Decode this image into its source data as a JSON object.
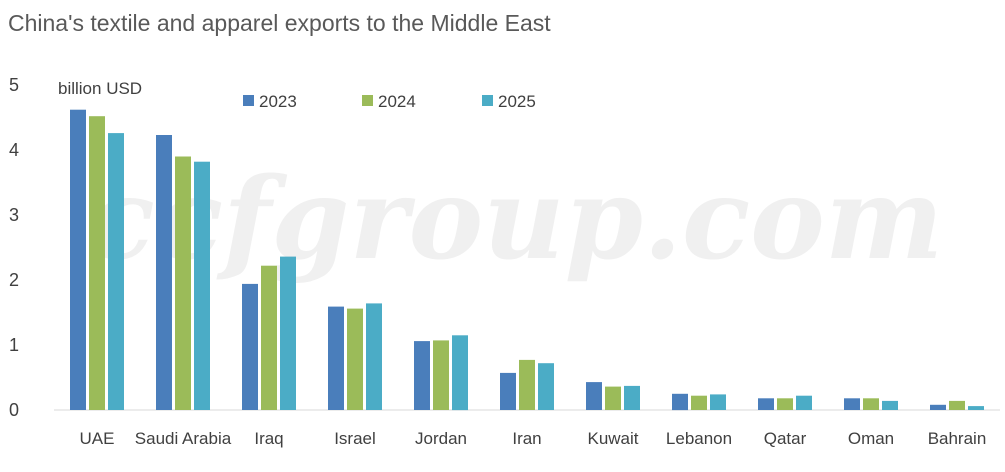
{
  "chart_data": {
    "type": "bar",
    "title": "China's textile and apparel exports to the Middle East",
    "unit_label": "billion USD",
    "watermark": "ccfgroup.com",
    "categories": [
      "UAE",
      "Saudi Arabia",
      "Iraq",
      "Israel",
      "Jordan",
      "Iran",
      "Kuwait",
      "Lebanon",
      "Qatar",
      "Oman",
      "Bahrain"
    ],
    "series": [
      {
        "name": "2023",
        "color": "#4a7ebb",
        "values": [
          4.62,
          4.23,
          1.94,
          1.59,
          1.06,
          0.57,
          0.43,
          0.25,
          0.18,
          0.18,
          0.08
        ]
      },
      {
        "name": "2024",
        "color": "#9bbb59",
        "values": [
          4.52,
          3.9,
          2.22,
          1.56,
          1.07,
          0.77,
          0.36,
          0.22,
          0.18,
          0.18,
          0.14
        ]
      },
      {
        "name": "2025",
        "color": "#4bacc6",
        "values": [
          4.26,
          3.82,
          2.36,
          1.64,
          1.15,
          0.72,
          0.37,
          0.24,
          0.22,
          0.14,
          0.06
        ]
      }
    ],
    "ylim": [
      0,
      5
    ],
    "yticks": [
      "0",
      "1",
      "2",
      "3",
      "4",
      "5"
    ],
    "grid": false,
    "legend_position": "top"
  }
}
